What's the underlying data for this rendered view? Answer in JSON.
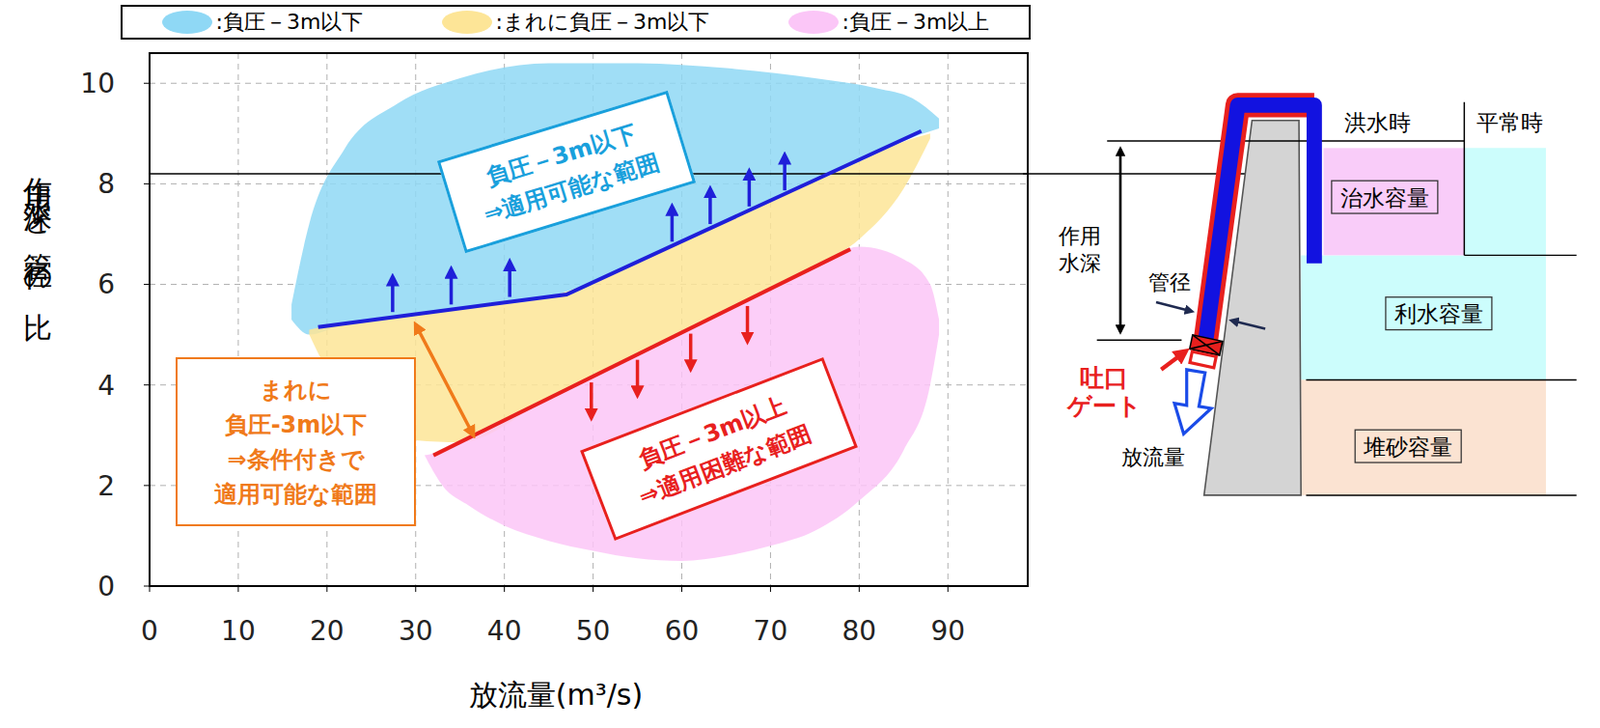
{
  "chart_data": {
    "type": "area",
    "x_label": "放流量(m³/s)",
    "y_label": "作用水深と管径の比",
    "xlim": [
      0,
      99
    ],
    "xticks": [
      0,
      10,
      20,
      30,
      40,
      50,
      60,
      70,
      80,
      90
    ],
    "ylim": [
      0,
      10.6
    ],
    "yticks": [
      0,
      2,
      4,
      6,
      8,
      10
    ],
    "grid": true,
    "legend": "top",
    "regions": [
      {
        "name": ":負圧－3m以下",
        "color": "#8fd8f5",
        "x": [
          16,
          18,
          22,
          28,
          35,
          45,
          55,
          65,
          75,
          82,
          86,
          89
        ],
        "low": [
          5.3,
          5.0,
          5.22,
          5.36,
          5.52,
          5.75,
          6.44,
          7.24,
          8.04,
          8.6,
          8.92,
          9.1
        ],
        "high": [
          5.6,
          7.2,
          8.7,
          9.6,
          10.1,
          10.4,
          10.4,
          10.3,
          10.1,
          9.9,
          9.7,
          9.3
        ]
      },
      {
        "name": ":まれに負圧－3m以下",
        "color": "#fde597",
        "x": [
          18,
          20,
          25,
          30,
          35,
          45,
          55,
          65,
          75,
          80,
          85,
          88
        ],
        "low": [
          5.0,
          4.3,
          3.5,
          2.9,
          2.86,
          3.73,
          4.6,
          5.47,
          6.35,
          6.9,
          7.9,
          8.9
        ],
        "high": [
          5.1,
          5.17,
          5.29,
          5.4,
          5.52,
          5.75,
          6.44,
          7.24,
          8.04,
          8.44,
          8.84,
          9.0
        ]
      },
      {
        "name": ":負圧－3m以上",
        "color": "#fbc6f7",
        "x": [
          31,
          33,
          36,
          40,
          45,
          50,
          55,
          60,
          65,
          70,
          75,
          80,
          85,
          88,
          89
        ],
        "low": [
          2.6,
          2.0,
          1.6,
          1.2,
          0.9,
          0.7,
          0.55,
          0.5,
          0.6,
          0.8,
          1.1,
          1.7,
          2.7,
          4.0,
          5.0
        ],
        "high": [
          2.6,
          2.69,
          2.95,
          3.3,
          3.73,
          4.17,
          4.6,
          5.04,
          5.47,
          5.91,
          6.35,
          6.75,
          6.5,
          6.0,
          5.3
        ]
      }
    ],
    "boundaries": [
      {
        "color": "#1f1fd9",
        "x": [
          19,
          47,
          87
        ],
        "values": [
          5.15,
          5.8,
          9.05
        ]
      },
      {
        "color": "#e8201e",
        "x": [
          32,
          79
        ],
        "values": [
          2.6,
          6.7
        ]
      }
    ],
    "reference_y": 8.2,
    "arrows": [
      {
        "color": "#1f1fd9",
        "marker": "arrow",
        "segments": [
          [
            27.4,
            5.45,
            27.4,
            6.15
          ],
          [
            34,
            5.6,
            34,
            6.3
          ],
          [
            40.6,
            5.75,
            40.6,
            6.45
          ],
          [
            58.9,
            6.85,
            58.9,
            7.55
          ],
          [
            63.2,
            7.2,
            63.2,
            7.9
          ],
          [
            67.6,
            7.55,
            67.6,
            8.25
          ],
          [
            71.6,
            7.87,
            71.6,
            8.57
          ]
        ]
      },
      {
        "color": "#e8201e",
        "marker": "arrow",
        "segments": [
          [
            49.8,
            4.05,
            49.8,
            3.35
          ],
          [
            55,
            4.5,
            55,
            3.8
          ],
          [
            61,
            5.02,
            61,
            4.32
          ],
          [
            67.4,
            5.57,
            67.4,
            4.87
          ]
        ]
      },
      {
        "color": "#f07a1a",
        "marker": "double_arrow",
        "segments": [
          [
            30,
            5.2,
            36.5,
            3.0
          ]
        ]
      }
    ],
    "annotations": [
      {
        "text": [
          "負圧－3m以下",
          "⇒適用可能な範囲"
        ],
        "color": "#19a0dc"
      },
      {
        "text": [
          "まれに",
          "負圧-3m以下",
          "⇒条件付きで",
          "適用可能な範囲"
        ],
        "color": "#f07a1a"
      },
      {
        "text": [
          "負圧－3m以上",
          "⇒適用困難な範囲"
        ],
        "color": "#e8201e"
      }
    ]
  },
  "diagram": {
    "levels": [
      "洪水時",
      "平常時"
    ],
    "storage": [
      "治水容量",
      "利水容量",
      "堆砂容量"
    ],
    "depth": [
      "作用",
      "水深"
    ],
    "pipe": "管径",
    "gate": [
      "吐口",
      "ゲート"
    ],
    "discharge": "放流量"
  }
}
